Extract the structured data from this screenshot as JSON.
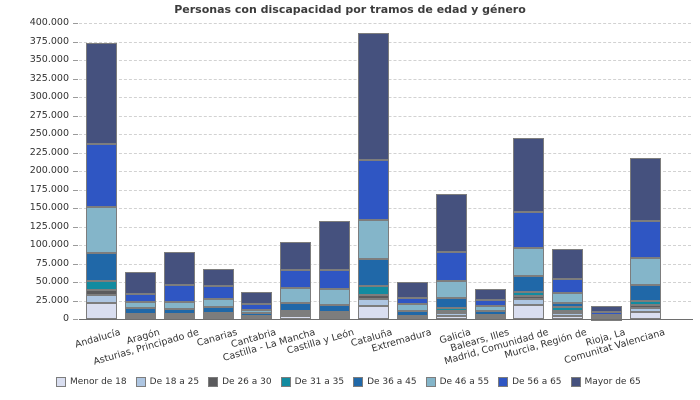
{
  "chart_data": {
    "type": "bar",
    "stacked": true,
    "title": "Personas con discapacidad por tramos de edad y género",
    "xlabel": "",
    "ylabel": "",
    "ylim": [
      0,
      400000
    ],
    "ytick_step": 25000,
    "y_tick_labels": [
      "0",
      "25.000",
      "50.000",
      "75.000",
      "100.000",
      "125.000",
      "150.000",
      "175.000",
      "200.000",
      "225.000",
      "250.000",
      "275.000",
      "300.000",
      "325.000",
      "350.000",
      "375.000",
      "400.000"
    ],
    "grid": true,
    "legend_position": "bottom",
    "categories": [
      "Andalucía",
      "Aragón",
      "Asturias, Principado de",
      "Canarias",
      "Cantabria",
      "Castilla - La Mancha",
      "Castilla y León",
      "Cataluña",
      "Extremadura",
      "Galicia",
      "Balears, Illes",
      "Madrid, Comunidad de",
      "Murcia, Región de",
      "Rioja, La",
      "Comunitat Valenciana"
    ],
    "series": [
      {
        "name": "Menor de 18",
        "color": "#D9DEF0",
        "values": [
          21000,
          2000,
          1500,
          2500,
          1000,
          3500,
          3000,
          18000,
          1200,
          4000,
          1500,
          19000,
          4000,
          600,
          9500
        ]
      },
      {
        "name": "De 18 a 25",
        "color": "#AEC6E2",
        "values": [
          12000,
          1500,
          1500,
          2000,
          800,
          2500,
          2500,
          9000,
          1000,
          3500,
          1000,
          8000,
          3600,
          500,
          5500
        ]
      },
      {
        "name": "De 26 a 30",
        "color": "#5B5B5D",
        "values": [
          6000,
          1500,
          1500,
          1500,
          700,
          1500,
          1500,
          5500,
          800,
          3000,
          900,
          4000,
          3500,
          400,
          4500
        ]
      },
      {
        "name": "De 31 a 35",
        "color": "#128BA0",
        "values": [
          12500,
          2000,
          2500,
          2500,
          1000,
          3000,
          3000,
          12000,
          1500,
          4500,
          1600,
          6000,
          4500,
          600,
          4500
        ]
      },
      {
        "name": "De 36 a 45",
        "color": "#2068A8",
        "values": [
          38000,
          7500,
          7000,
          8000,
          4000,
          11000,
          9000,
          36500,
          6000,
          14000,
          5800,
          21500,
          6500,
          1700,
          22000
        ]
      },
      {
        "name": "De 46 a 55",
        "color": "#84B5C9",
        "values": [
          61500,
          8000,
          9000,
          11000,
          4500,
          20500,
          22000,
          52500,
          9500,
          22500,
          6800,
          37500,
          13500,
          2000,
          37000
        ]
      },
      {
        "name": "De 56 a 65",
        "color": "#2F56C3",
        "values": [
          85000,
          11500,
          23000,
          16500,
          8500,
          24000,
          25000,
          82000,
          8000,
          38500,
          7800,
          48500,
          18000,
          3200,
          49000
        ]
      },
      {
        "name": "Mayor de 65",
        "color": "#45517E",
        "values": [
          137000,
          29000,
          45000,
          23000,
          15500,
          38000,
          67000,
          171500,
          22000,
          79000,
          15800,
          100000,
          41000,
          8000,
          85000
        ]
      }
    ]
  }
}
